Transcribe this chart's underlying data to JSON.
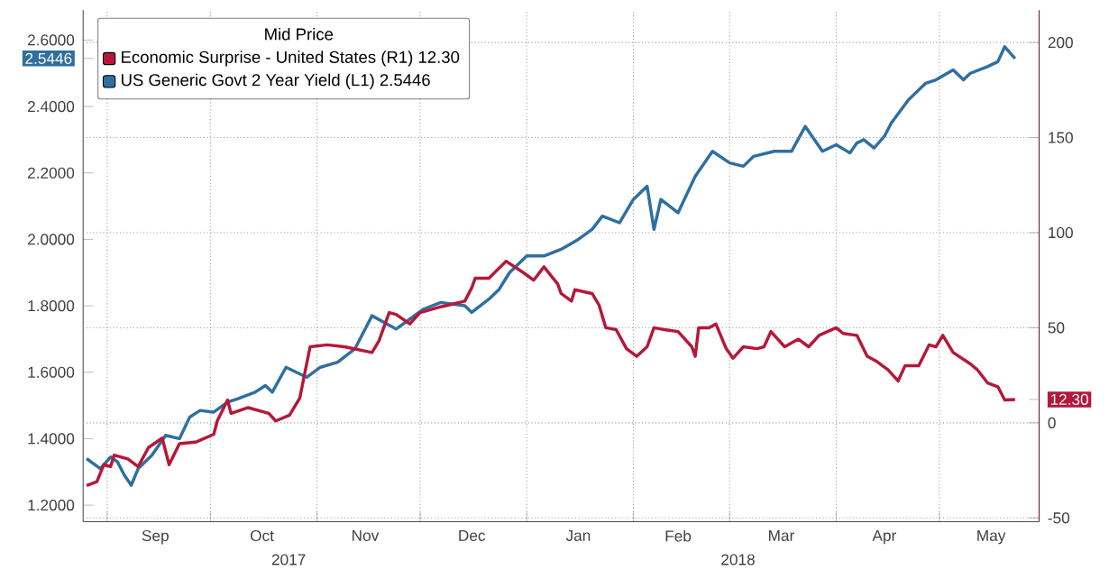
{
  "chart_data": {
    "type": "line",
    "legend": "top left",
    "legend_title": "Mid Price",
    "grid": true,
    "xlim": [
      "2017-08-25",
      "2018-05-30"
    ],
    "xticks": [
      {
        "value": "2017-09-01",
        "label": null
      },
      {
        "value": "2017-09-15",
        "label": "Sep"
      },
      {
        "value": "2017-10-01",
        "label": null
      },
      {
        "value": "2017-10-16",
        "label": "Oct"
      },
      {
        "value": "2017-11-01",
        "label": null
      },
      {
        "value": "2017-11-15",
        "label": "Nov"
      },
      {
        "value": "2017-12-01",
        "label": null
      },
      {
        "value": "2017-12-16",
        "label": "Dec"
      },
      {
        "value": "2018-01-01",
        "label": null
      },
      {
        "value": "2018-01-16",
        "label": "Jan"
      },
      {
        "value": "2018-02-01",
        "label": null
      },
      {
        "value": "2018-02-14",
        "label": "Feb"
      },
      {
        "value": "2018-03-01",
        "label": null
      },
      {
        "value": "2018-03-16",
        "label": "Mar"
      },
      {
        "value": "2018-04-01",
        "label": null
      },
      {
        "value": "2018-04-15",
        "label": "Apr"
      },
      {
        "value": "2018-05-01",
        "label": null
      },
      {
        "value": "2018-05-16",
        "label": "May"
      }
    ],
    "ylim": [
      1.15,
      2.69
    ],
    "yticks": [
      {
        "value": 1.2,
        "label": "1.2000"
      },
      {
        "value": 1.4,
        "label": "1.4000"
      },
      {
        "value": 1.6,
        "label": "1.6000"
      },
      {
        "value": 1.8,
        "label": "1.8000"
      },
      {
        "value": 2.0,
        "label": "2.0000"
      },
      {
        "value": 2.2,
        "label": "2.2000"
      },
      {
        "value": 2.4,
        "label": "2.4000"
      },
      {
        "value": 2.6,
        "label": "2.6000"
      },
      {
        "value": 2.5446,
        "label": "2.5446"
      }
    ],
    "y2lim": [
      -52,
      217
    ],
    "y2ticks": [
      -50,
      0,
      50,
      100,
      150,
      200,
      {
        "value": 12.3,
        "label": "12.30"
      }
    ],
    "annotations": [
      "2017",
      "2018"
    ],
    "series": [
      {
        "name": "Economic Surprise - United States (R1) 12.30",
        "color": "#b5183a",
        "axis": "y2",
        "x": [
          "2017-08-26",
          "2017-08-29",
          "2017-08-31",
          "2017-09-02",
          "2017-09-03",
          "2017-09-07",
          "2017-09-10",
          "2017-09-13",
          "2017-09-17",
          "2017-09-19",
          "2017-09-22",
          "2017-09-27",
          "2017-10-02",
          "2017-10-03",
          "2017-10-06",
          "2017-10-07",
          "2017-10-12",
          "2017-10-18",
          "2017-10-20",
          "2017-10-24",
          "2017-10-27",
          "2017-10-30",
          "2017-11-04",
          "2017-11-09",
          "2017-11-17",
          "2017-11-19",
          "2017-11-22",
          "2017-11-24",
          "2017-11-28",
          "2017-12-01",
          "2017-12-07",
          "2017-12-14",
          "2017-12-16",
          "2017-12-17",
          "2017-12-21",
          "2017-12-26",
          "2017-12-31",
          "2018-01-03",
          "2018-01-06",
          "2018-01-10",
          "2018-01-11",
          "2018-01-14",
          "2018-01-15",
          "2018-01-20",
          "2018-01-22",
          "2018-01-24",
          "2018-01-27",
          "2018-01-30",
          "2018-02-02",
          "2018-02-05",
          "2018-02-07",
          "2018-02-10",
          "2018-02-14",
          "2018-02-18",
          "2018-02-19",
          "2018-02-20",
          "2018-02-23",
          "2018-02-25",
          "2018-02-28",
          "2018-03-02",
          "2018-03-05",
          "2018-03-09",
          "2018-03-11",
          "2018-03-13",
          "2018-03-17",
          "2018-03-21",
          "2018-03-24",
          "2018-03-27",
          "2018-04-01",
          "2018-04-03",
          "2018-04-07",
          "2018-04-10",
          "2018-04-13",
          "2018-04-16",
          "2018-04-19",
          "2018-04-21",
          "2018-04-25",
          "2018-04-28",
          "2018-04-30",
          "2018-05-02",
          "2018-05-05",
          "2018-05-10",
          "2018-05-12",
          "2018-05-15",
          "2018-05-18",
          "2018-05-20",
          "2018-05-23"
        ],
        "values": [
          -33,
          -31,
          -22,
          -23,
          -17,
          -19,
          -23,
          -13,
          -8,
          -22,
          -11,
          -10,
          -6,
          1,
          12,
          5,
          8,
          5,
          1,
          4,
          13,
          40,
          41,
          40,
          37,
          43,
          58,
          57,
          52,
          58,
          61,
          64,
          71,
          76,
          76,
          85,
          79,
          75,
          82,
          73,
          68,
          64,
          70,
          68,
          62,
          50,
          49,
          39,
          35,
          40,
          50,
          49,
          48,
          40,
          35,
          50,
          50,
          52,
          39,
          34,
          40,
          39,
          40,
          48,
          40,
          44,
          40,
          46,
          50,
          47,
          46,
          35,
          32,
          28,
          22,
          30,
          30,
          41,
          40,
          46,
          37,
          31,
          28,
          21,
          19,
          12,
          12.3
        ]
      },
      {
        "name": "US Generic Govt 2 Year Yield (L1) 2.5446",
        "color": "#2f6f9f",
        "axis": "y",
        "x": [
          "2017-08-26",
          "2017-08-30",
          "2017-09-02",
          "2017-09-04",
          "2017-09-06",
          "2017-09-08",
          "2017-09-10",
          "2017-09-14",
          "2017-09-18",
          "2017-09-22",
          "2017-09-25",
          "2017-09-28",
          "2017-10-02",
          "2017-10-06",
          "2017-10-09",
          "2017-10-14",
          "2017-10-17",
          "2017-10-19",
          "2017-10-23",
          "2017-10-29",
          "2017-11-02",
          "2017-11-07",
          "2017-11-12",
          "2017-11-17",
          "2017-11-24",
          "2017-12-02",
          "2017-12-07",
          "2017-12-14",
          "2017-12-16",
          "2017-12-21",
          "2017-12-24",
          "2017-12-27",
          "2018-01-01",
          "2018-01-06",
          "2018-01-11",
          "2018-01-16",
          "2018-01-20",
          "2018-01-23",
          "2018-01-28",
          "2018-02-01",
          "2018-02-05",
          "2018-02-07",
          "2018-02-09",
          "2018-02-14",
          "2018-02-19",
          "2018-02-24",
          "2018-03-01",
          "2018-03-05",
          "2018-03-08",
          "2018-03-14",
          "2018-03-19",
          "2018-03-23",
          "2018-03-28",
          "2018-04-01",
          "2018-04-05",
          "2018-04-07",
          "2018-04-09",
          "2018-04-12",
          "2018-04-15",
          "2018-04-17",
          "2018-04-22",
          "2018-04-27",
          "2018-04-30",
          "2018-05-05",
          "2018-05-08",
          "2018-05-10",
          "2018-05-15",
          "2018-05-18",
          "2018-05-20",
          "2018-05-23"
        ],
        "values": [
          1.34,
          1.31,
          1.345,
          1.33,
          1.29,
          1.26,
          1.31,
          1.35,
          1.41,
          1.4,
          1.465,
          1.485,
          1.48,
          1.51,
          1.52,
          1.54,
          1.56,
          1.54,
          1.615,
          1.585,
          1.615,
          1.63,
          1.67,
          1.77,
          1.73,
          1.79,
          1.81,
          1.8,
          1.78,
          1.82,
          1.85,
          1.9,
          1.95,
          1.95,
          1.97,
          2.0,
          2.03,
          2.07,
          2.05,
          2.12,
          2.16,
          2.03,
          2.12,
          2.08,
          2.19,
          2.265,
          2.23,
          2.22,
          2.25,
          2.265,
          2.265,
          2.34,
          2.265,
          2.285,
          2.26,
          2.29,
          2.3,
          2.275,
          2.31,
          2.35,
          2.42,
          2.47,
          2.48,
          2.51,
          2.48,
          2.5,
          2.52,
          2.535,
          2.58,
          2.5446
        ]
      }
    ]
  }
}
